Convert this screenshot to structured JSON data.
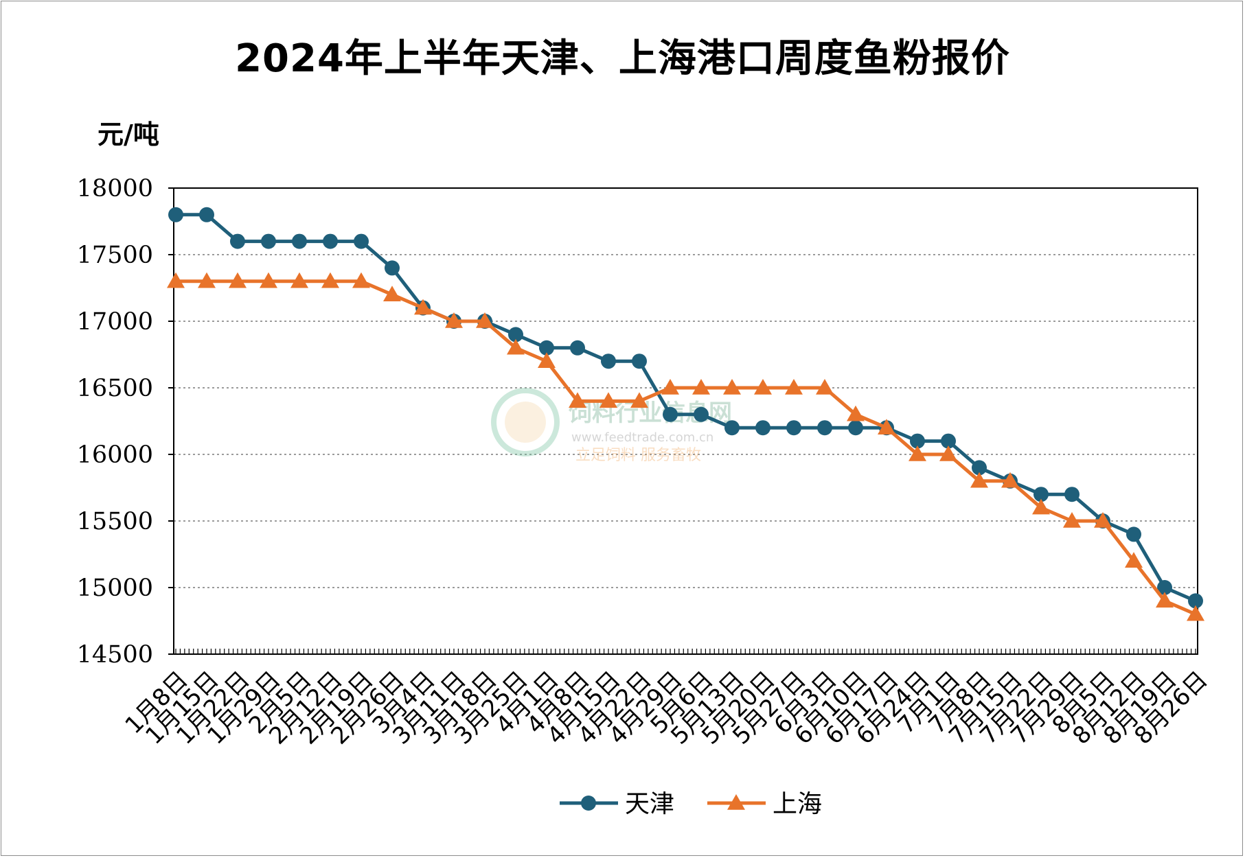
{
  "chart_data": {
    "type": "line",
    "title": "2024年上半年天津、上海港口周度鱼粉报价",
    "ylabel": "元/吨",
    "xlabel": "",
    "ylim": [
      14500,
      18000
    ],
    "yticks": [
      14500,
      15000,
      15500,
      16000,
      16500,
      17000,
      17500,
      18000
    ],
    "grid": "horizontal dotted",
    "legend_position": "bottom",
    "categories": [
      "1月8日",
      "1月15日",
      "1月22日",
      "1月29日",
      "2月5日",
      "2月12日",
      "2月19日",
      "2月26日",
      "3月4日",
      "3月11日",
      "3月18日",
      "3月25日",
      "4月1日",
      "4月8日",
      "4月15日",
      "4月22日",
      "4月29日",
      "5月6日",
      "5月13日",
      "5月20日",
      "5月27日",
      "6月3日",
      "6月10日",
      "6月17日",
      "6月24日",
      "7月1日",
      "7月8日",
      "7月15日",
      "7月22日",
      "7月29日",
      "8月5日",
      "8月12日",
      "8月19日",
      "8月26日"
    ],
    "series": [
      {
        "name": "天津",
        "color": "#1f5f7a",
        "marker": "circle",
        "values": [
          17800,
          17800,
          17600,
          17600,
          17600,
          17600,
          17600,
          17400,
          17100,
          17000,
          17000,
          16900,
          16800,
          16800,
          16700,
          16700,
          16300,
          16300,
          16200,
          16200,
          16200,
          16200,
          16200,
          16200,
          16100,
          16100,
          15900,
          15800,
          15700,
          15700,
          15500,
          15400,
          15000,
          14900
        ]
      },
      {
        "name": "上海",
        "color": "#e8732a",
        "marker": "triangle",
        "values": [
          17300,
          17300,
          17300,
          17300,
          17300,
          17300,
          17300,
          17200,
          17100,
          17000,
          17000,
          16800,
          16700,
          16400,
          16400,
          16400,
          16500,
          16500,
          16500,
          16500,
          16500,
          16500,
          16300,
          16200,
          16000,
          16000,
          15800,
          15800,
          15600,
          15500,
          15500,
          15200,
          14900,
          14800
        ]
      }
    ]
  },
  "watermark": {
    "name": "饲料行业信息网",
    "url": "www.feedtrade.com.cn",
    "slogan": "立足饲料  服务畜牧"
  }
}
